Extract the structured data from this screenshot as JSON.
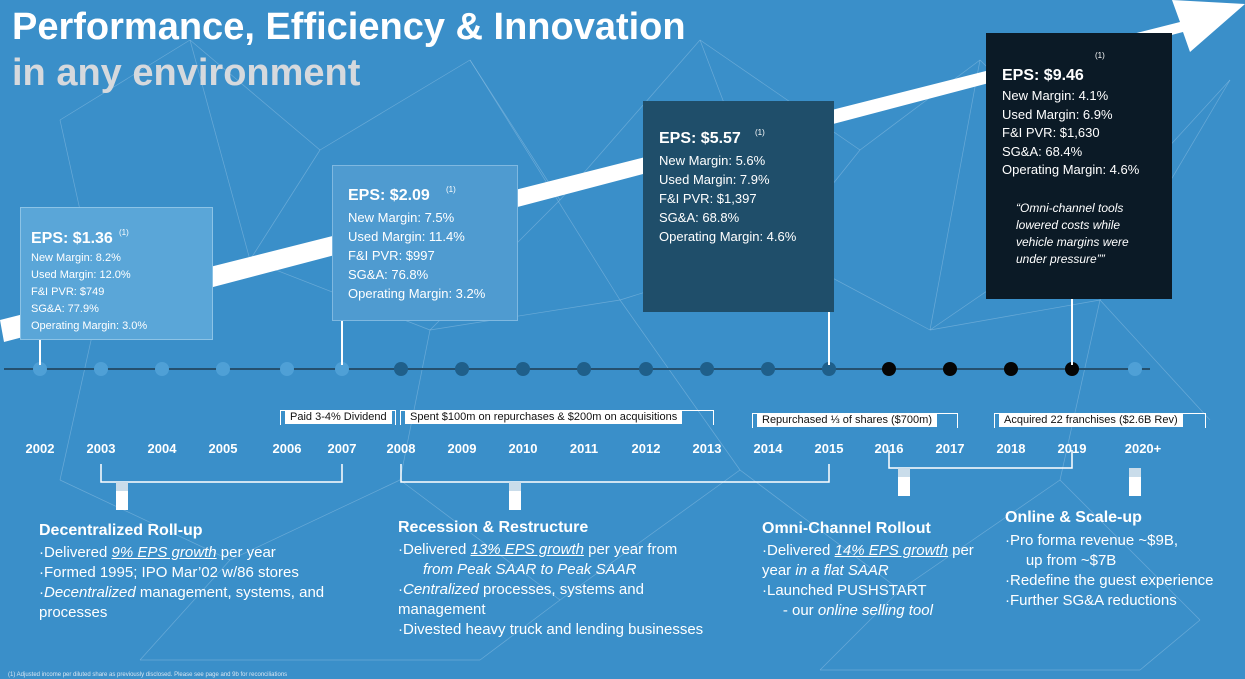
{
  "title": {
    "line1": "Performance, Efficiency & Innovation",
    "line2": "in any environment"
  },
  "eps_boxes": [
    {
      "eps": "EPS: $1.36",
      "note": "(1)",
      "lines": [
        "New Margin: 8.2%",
        "Used Margin: 12.0%",
        "F&I PVR: $749",
        "SG&A: 77.9%",
        "Operating Margin: 3.0%"
      ]
    },
    {
      "eps": "EPS: $2.09",
      "note": "(1)",
      "lines": [
        "New Margin: 7.5%",
        "Used Margin: 11.4%",
        "F&I PVR: $997",
        "SG&A: 76.8%",
        "Operating Margin: 3.2%"
      ]
    },
    {
      "eps": "EPS: $5.57",
      "note": "(1)",
      "lines": [
        "New Margin: 5.6%",
        "Used Margin: 7.9%",
        "F&I PVR: $1,397",
        "SG&A: 68.8%",
        "Operating Margin: 4.6%"
      ]
    },
    {
      "eps": "EPS: $9.46",
      "note": "(1)",
      "lines": [
        "New Margin: 4.1%",
        "Used Margin: 6.9%",
        "F&I PVR: $1,630",
        "SG&A: 68.4%",
        "Operating Margin: 4.6%"
      ],
      "quote": [
        "“Omni-channel tools",
        "lowered costs while",
        "vehicle margins were",
        "under pressure””"
      ]
    }
  ],
  "years": [
    "2002",
    "2003",
    "2004",
    "2005",
    "2006",
    "2007",
    "2008",
    "2009",
    "2010",
    "2011",
    "2012",
    "2013",
    "2014",
    "2015",
    "2016",
    "2017",
    "2018",
    "2019",
    "2020+"
  ],
  "brackets": [
    {
      "label": "Paid 3-4% Dividend"
    },
    {
      "label": "Spent $100m on repurchases & $200m on acquisitions"
    },
    {
      "label": "Repurchased ⅓ of shares ($700m)"
    },
    {
      "label": "Acquired 22 franchises ($2.6B Rev)"
    }
  ],
  "phases": [
    {
      "title": "Decentralized Roll-up",
      "lines": [
        [
          {
            "t": "·Delivered "
          },
          {
            "t": "9% EPS growth",
            "s": "ui"
          },
          {
            "t": " per year"
          }
        ],
        [
          {
            "t": "·Formed 1995; IPO Mar’02 w/86 stores"
          }
        ],
        [
          {
            "t": "·"
          },
          {
            "t": "Decentralized",
            "s": "i"
          },
          {
            "t": " management, systems, and"
          }
        ],
        [
          {
            "t": "processes"
          }
        ]
      ]
    },
    {
      "title": "Recession & Restructure",
      "lines": [
        [
          {
            "t": "·Delivered "
          },
          {
            "t": "13% EPS growth",
            "s": "ui"
          },
          {
            "t": " per year from"
          }
        ],
        [
          {
            "t": "      "
          },
          {
            "t": "from Peak SAAR to Peak SAAR",
            "s": "i"
          }
        ],
        [
          {
            "t": "·"
          },
          {
            "t": "Centralized",
            "s": "i"
          },
          {
            "t": " processes, systems and"
          }
        ],
        [
          {
            "t": "management"
          }
        ],
        [
          {
            "t": "·Divested heavy truck and lending businesses"
          }
        ]
      ]
    },
    {
      "title": "Omni-Channel Rollout",
      "lines": [
        [
          {
            "t": "·Delivered "
          },
          {
            "t": "14% EPS growth",
            "s": "ui"
          },
          {
            "t": " per"
          }
        ],
        [
          {
            "t": "year "
          },
          {
            "t": "in a flat SAAR",
            "s": "i"
          }
        ],
        [
          {
            "t": "·Launched PUSHSTART"
          }
        ],
        [
          {
            "t": "     - our "
          },
          {
            "t": "online selling tool",
            "s": "i"
          }
        ]
      ]
    },
    {
      "title": "Online & Scale-up",
      "lines": [
        [
          {
            "t": "·Pro forma revenue ~$9B,"
          }
        ],
        [
          {
            "t": "     up from ~$7B"
          }
        ],
        [
          {
            "t": "·Redefine the guest experience"
          }
        ],
        [
          {
            "t": "·Further SG&A reductions"
          }
        ]
      ]
    }
  ],
  "footnote": "(1) Adjusted income per diluted share as previously disclosed. Please see page and 9b for reconciliations",
  "colors": {
    "background": "#3a8fc9",
    "box1": "#5aa6d8",
    "box2": "#4f9bd0",
    "box3": "#1f4e6a",
    "box4": "#0b1a26",
    "arrow": "#ffffff",
    "dot_early": "#4fa0d6",
    "dot_mid": "#1f5f8a",
    "dot_late": "#050505"
  }
}
